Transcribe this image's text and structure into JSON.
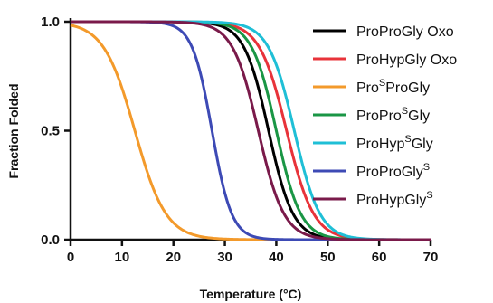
{
  "chart_data": {
    "type": "line",
    "xlabel": "Temperature (°C)",
    "ylabel": "Fraction Folded",
    "xlim": [
      0,
      70
    ],
    "ylim": [
      0,
      1
    ],
    "x_ticks": [
      "0",
      "10",
      "20",
      "30",
      "40",
      "50",
      "60",
      "70"
    ],
    "y_ticks": [
      "0.0",
      "0.5",
      "1.0"
    ],
    "grid": false,
    "legend_position": "right",
    "series": [
      {
        "name_base": "ProProGly Oxo",
        "name_sup": "",
        "name_tail": "",
        "color": "#000000",
        "tm": 38.5,
        "k": 0.42
      },
      {
        "name_base": "ProHypGly Oxo",
        "name_sup": "",
        "name_tail": "",
        "color": "#e8333a",
        "tm": 42.0,
        "k": 0.38
      },
      {
        "name_base": "Pro",
        "name_sup": "S",
        "name_tail": "ProGly",
        "color": "#f39a2b",
        "tm": 12.5,
        "k": 0.33
      },
      {
        "name_base": "ProPro",
        "name_sup": "S",
        "name_tail": "Gly",
        "color": "#1a9645",
        "tm": 40.0,
        "k": 0.42
      },
      {
        "name_base": "ProHyp",
        "name_sup": "S",
        "name_tail": "Gly",
        "color": "#1fbfd6",
        "tm": 43.5,
        "k": 0.4
      },
      {
        "name_base": "ProProGly",
        "name_sup": "S",
        "name_tail": "",
        "color": "#3d4ab5",
        "tm": 27.5,
        "k": 0.52
      },
      {
        "name_base": "ProHypGly",
        "name_sup": "S",
        "name_tail": "",
        "color": "#7a1a4a",
        "tm": 36.5,
        "k": 0.4
      }
    ]
  }
}
